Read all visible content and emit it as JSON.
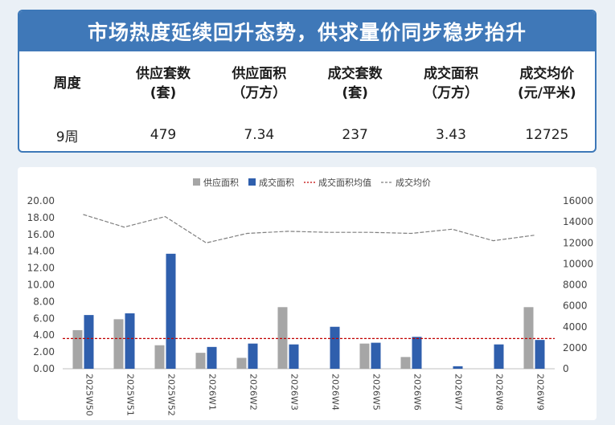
{
  "banner": {
    "title": "市场热度延续回升态势，供求量价同步稳步抬升"
  },
  "table": {
    "headers": [
      {
        "line1": "周度",
        "line2": ""
      },
      {
        "line1": "供应套数",
        "line2": "(套)"
      },
      {
        "line1": "供应面积",
        "line2": "（万方）"
      },
      {
        "line1": "成交套数",
        "line2": "(套)"
      },
      {
        "line1": "成交面积",
        "line2": "（万方）"
      },
      {
        "line1": "成交均价",
        "line2": "(元/平米)"
      }
    ],
    "row": [
      "9周",
      "479",
      "7.34",
      "237",
      "3.43",
      "12725"
    ]
  },
  "chart_data": {
    "type": "bar",
    "categories": [
      "2025W50",
      "2025W51",
      "2025W52",
      "2026W1",
      "2026W2",
      "2026W3",
      "2026W4",
      "2026W5",
      "2026W6",
      "2026W7",
      "2026W8",
      "2026W9"
    ],
    "series": [
      {
        "name": "供应面积",
        "type": "bar",
        "axis": "left",
        "color": "#a6a6a6",
        "values": [
          4.6,
          5.9,
          2.8,
          1.9,
          1.3,
          7.34,
          0,
          3.0,
          1.4,
          0,
          0,
          7.34
        ]
      },
      {
        "name": "成交面积",
        "type": "bar",
        "axis": "left",
        "color": "#2f5fad",
        "values": [
          6.4,
          6.6,
          13.7,
          2.6,
          3.0,
          2.9,
          5.0,
          3.1,
          3.8,
          0.3,
          2.9,
          3.43
        ]
      },
      {
        "name": "成交面积均值",
        "type": "hline",
        "axis": "left",
        "color": "#c00000",
        "value": 3.6
      },
      {
        "name": "成交均价",
        "type": "line",
        "axis": "right",
        "color": "#7f7f7f",
        "values": [
          14700,
          13500,
          14500,
          12000,
          12900,
          13100,
          13000,
          13000,
          12900,
          13300,
          12200,
          12725
        ]
      }
    ],
    "y_left": {
      "min": 0,
      "max": 20,
      "step": 2,
      "ticks": [
        "0.00",
        "2.00",
        "4.00",
        "6.00",
        "8.00",
        "10.00",
        "12.00",
        "14.00",
        "16.00",
        "18.00",
        "20.00"
      ]
    },
    "y_right": {
      "min": 0,
      "max": 16000,
      "step": 2000,
      "ticks": [
        "0",
        "2000",
        "4000",
        "6000",
        "8000",
        "10000",
        "12000",
        "14000",
        "16000"
      ]
    },
    "legend_position": "top",
    "grid": false
  }
}
